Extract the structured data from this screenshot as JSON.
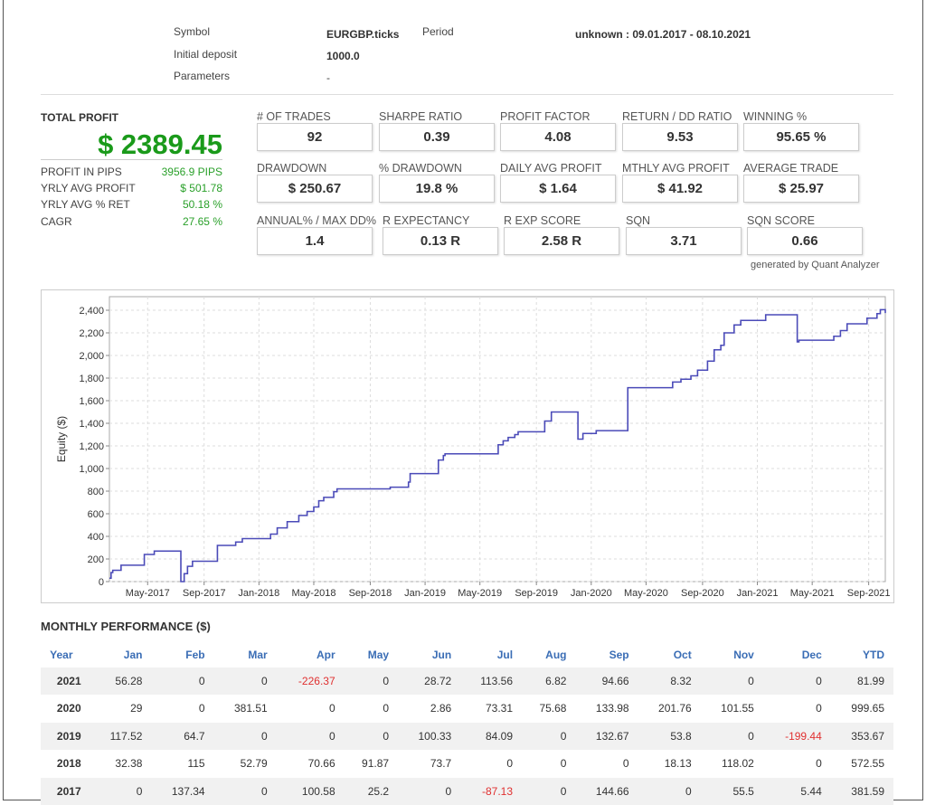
{
  "header": {
    "symbol_label": "Symbol",
    "symbol_value": "EURGBP.ticks",
    "period_label": "Period",
    "period_value": "unknown : 09.01.2017 - 08.10.2021",
    "deposit_label": "Initial deposit",
    "deposit_value": "1000.0",
    "params_label": "Parameters",
    "params_value": "-"
  },
  "summary": {
    "total_profit_label": "TOTAL PROFIT",
    "total_profit": "$ 2389.45",
    "kpis": [
      {
        "label": "PROFIT IN PIPS",
        "value": "3956.9 PIPS"
      },
      {
        "label": "YRLY AVG PROFIT",
        "value": "$ 501.78"
      },
      {
        "label": "YRLY AVG % RET",
        "value": "50.18 %"
      },
      {
        "label": "CAGR",
        "value": "27.65 %"
      }
    ]
  },
  "stats": [
    {
      "label": "# OF TRADES",
      "value": "92"
    },
    {
      "label": "SHARPE RATIO",
      "value": "0.39"
    },
    {
      "label": "PROFIT FACTOR",
      "value": "4.08"
    },
    {
      "label": "RETURN / DD RATIO",
      "value": "9.53"
    },
    {
      "label": "WINNING %",
      "value": "95.65 %"
    },
    {
      "label": "DRAWDOWN",
      "value": "$ 250.67"
    },
    {
      "label": "% DRAWDOWN",
      "value": "19.8 %"
    },
    {
      "label": "DAILY AVG PROFIT",
      "value": "$ 1.64"
    },
    {
      "label": "MTHLY AVG PROFIT",
      "value": "$ 41.92"
    },
    {
      "label": "AVERAGE TRADE",
      "value": "$ 25.97"
    },
    {
      "label": "ANNUAL% / MAX DD%",
      "value": "1.4"
    },
    {
      "label": "R EXPECTANCY",
      "value": "0.13 R"
    },
    {
      "label": "R EXP SCORE",
      "value": "2.58 R"
    },
    {
      "label": "SQN",
      "value": "3.71"
    },
    {
      "label": "SQN SCORE",
      "value": "0.66"
    }
  ],
  "generated_by": "generated by Quant Analyzer",
  "chart_data": {
    "type": "line",
    "title": "",
    "xlabel": "",
    "ylabel": "Equity ($)",
    "ylim": [
      0,
      2400
    ],
    "xlim": [
      2017.1,
      2021.77
    ],
    "grid": true,
    "line_color": "#4a4ab8",
    "yticks": [
      0,
      200,
      400,
      600,
      800,
      1000,
      1200,
      1400,
      1600,
      1800,
      2000,
      2200,
      2400
    ],
    "ytick_labels": [
      "0",
      "200",
      "400",
      "600",
      "800",
      "1,000",
      "1,200",
      "1,400",
      "1,600",
      "1,800",
      "2,000",
      "2,200",
      "2,400"
    ],
    "xticks": [
      2017.33,
      2017.67,
      2018.0,
      2018.33,
      2018.67,
      2019.0,
      2019.33,
      2019.67,
      2020.0,
      2020.33,
      2020.67,
      2021.0,
      2021.33,
      2021.67
    ],
    "xtick_labels": [
      "May-2017",
      "Sep-2017",
      "Jan-2018",
      "May-2018",
      "Sep-2018",
      "Jan-2019",
      "May-2019",
      "Sep-2019",
      "Jan-2020",
      "May-2020",
      "Sep-2020",
      "Jan-2021",
      "May-2021",
      "Sep-2021"
    ],
    "series": [
      {
        "name": "Equity",
        "step": true,
        "points": [
          [
            2017.1,
            30
          ],
          [
            2017.11,
            80
          ],
          [
            2017.12,
            100
          ],
          [
            2017.17,
            145
          ],
          [
            2017.31,
            240
          ],
          [
            2017.37,
            270
          ],
          [
            2017.53,
            0
          ],
          [
            2017.55,
            70
          ],
          [
            2017.57,
            135
          ],
          [
            2017.6,
            180
          ],
          [
            2017.75,
            320
          ],
          [
            2017.86,
            350
          ],
          [
            2017.9,
            380
          ],
          [
            2018.07,
            420
          ],
          [
            2018.11,
            475
          ],
          [
            2018.17,
            530
          ],
          [
            2018.24,
            585
          ],
          [
            2018.29,
            620
          ],
          [
            2018.33,
            660
          ],
          [
            2018.36,
            715
          ],
          [
            2018.39,
            745
          ],
          [
            2018.45,
            795
          ],
          [
            2018.47,
            820
          ],
          [
            2018.79,
            835
          ],
          [
            2018.9,
            880
          ],
          [
            2018.91,
            955
          ],
          [
            2019.08,
            1075
          ],
          [
            2019.11,
            1115
          ],
          [
            2019.12,
            1130
          ],
          [
            2019.44,
            1210
          ],
          [
            2019.47,
            1245
          ],
          [
            2019.5,
            1275
          ],
          [
            2019.54,
            1300
          ],
          [
            2019.56,
            1325
          ],
          [
            2019.72,
            1420
          ],
          [
            2019.76,
            1500
          ],
          [
            2019.92,
            1260
          ],
          [
            2019.95,
            1310
          ],
          [
            2020.03,
            1335
          ],
          [
            2020.22,
            1715
          ],
          [
            2020.49,
            1765
          ],
          [
            2020.54,
            1790
          ],
          [
            2020.6,
            1820
          ],
          [
            2020.64,
            1870
          ],
          [
            2020.7,
            1950
          ],
          [
            2020.74,
            2050
          ],
          [
            2020.78,
            2090
          ],
          [
            2020.8,
            2200
          ],
          [
            2020.86,
            2270
          ],
          [
            2020.9,
            2310
          ],
          [
            2021.05,
            2360
          ],
          [
            2021.24,
            2120
          ],
          [
            2021.25,
            2135
          ],
          [
            2021.46,
            2170
          ],
          [
            2021.5,
            2220
          ],
          [
            2021.54,
            2280
          ],
          [
            2021.66,
            2330
          ],
          [
            2021.72,
            2370
          ],
          [
            2021.74,
            2405
          ],
          [
            2021.77,
            2375
          ]
        ]
      }
    ]
  },
  "monthly": {
    "title": "MONTHLY PERFORMANCE ($)",
    "columns": [
      "Year",
      "Jan",
      "Feb",
      "Mar",
      "Apr",
      "May",
      "Jun",
      "Jul",
      "Aug",
      "Sep",
      "Oct",
      "Nov",
      "Dec",
      "YTD"
    ],
    "rows": [
      [
        "2021",
        "56.28",
        "0",
        "0",
        "-226.37",
        "0",
        "28.72",
        "113.56",
        "6.82",
        "94.66",
        "8.32",
        "0",
        "0",
        "81.99"
      ],
      [
        "2020",
        "29",
        "0",
        "381.51",
        "0",
        "0",
        "2.86",
        "73.31",
        "75.68",
        "133.98",
        "201.76",
        "101.55",
        "0",
        "999.65"
      ],
      [
        "2019",
        "117.52",
        "64.7",
        "0",
        "0",
        "0",
        "100.33",
        "84.09",
        "0",
        "132.67",
        "53.8",
        "0",
        "-199.44",
        "353.67"
      ],
      [
        "2018",
        "32.38",
        "115",
        "52.79",
        "70.66",
        "91.87",
        "73.7",
        "0",
        "0",
        "0",
        "18.13",
        "118.02",
        "0",
        "572.55"
      ],
      [
        "2017",
        "0",
        "137.34",
        "0",
        "100.58",
        "25.2",
        "0",
        "-87.13",
        "0",
        "144.66",
        "0",
        "55.5",
        "5.44",
        "381.59"
      ]
    ]
  }
}
